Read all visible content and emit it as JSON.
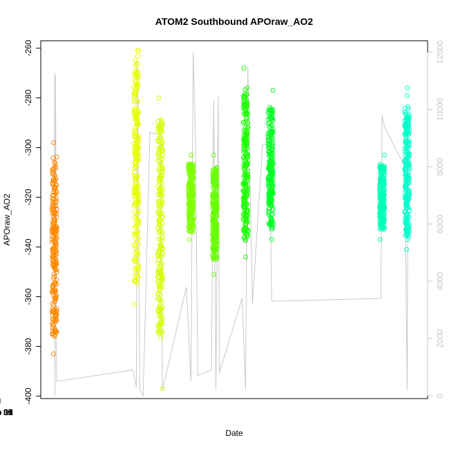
{
  "chart_data": {
    "type": "scatter",
    "title": "ATOM2 Southbound APOraw_AO2",
    "xlabel": "Date",
    "ylabel": "APOraw_AO2",
    "x_range": [
      "2022-01-28 12:00",
      "2022-02-11 16:00"
    ],
    "ylim": [
      -401,
      -257
    ],
    "y2lim": [
      -100,
      12400
    ],
    "x_ticks": [
      {
        "date": "2022-01-30",
        "label": "Jan 30"
      },
      {
        "date": "2022-02-01",
        "label": "Feb 01"
      },
      {
        "date": "2022-02-03",
        "label": "Feb 03"
      },
      {
        "date": "2022-02-05",
        "label": "Feb 05"
      },
      {
        "date": "2022-02-07",
        "label": "Feb 07"
      },
      {
        "date": "2022-02-09",
        "label": "Feb 09"
      },
      {
        "date": "2022-02-11",
        "label": "Feb 11"
      }
    ],
    "y_ticks": [
      -260,
      -280,
      -300,
      -320,
      -340,
      -360,
      -380,
      -400
    ],
    "y2_ticks": [
      0,
      2000,
      4000,
      6000,
      8000,
      10000,
      12000
    ],
    "grid": false,
    "legend": "none",
    "point_series": [
      {
        "date": "2022-01-29 00:00",
        "color": "#ff8800",
        "ymin": -383,
        "ymax": -298,
        "core_min": -376,
        "core_max": -303,
        "center": -340
      },
      {
        "date": "2022-02-01 00:00",
        "color": "#e6ff00",
        "ymin": -363,
        "ymax": -261,
        "core_min": -355,
        "core_max": -266,
        "center": -300
      },
      {
        "date": "2022-02-01 21:00",
        "color": "#d4ff00",
        "ymin": -397,
        "ymax": -280,
        "core_min": -375,
        "core_max": -288,
        "center": -330
      },
      {
        "date": "2022-02-03 00:00",
        "color": "#80ff00",
        "ymin": -337,
        "ymax": -303,
        "core_min": -334,
        "core_max": -306,
        "center": -322
      },
      {
        "date": "2022-02-03 21:00",
        "color": "#66ff00",
        "ymin": -351,
        "ymax": -303,
        "core_min": -345,
        "core_max": -308,
        "center": -325
      },
      {
        "date": "2022-02-05 00:00",
        "color": "#1aff00",
        "ymin": -344,
        "ymax": -268,
        "core_min": -338,
        "core_max": -275,
        "center": -310
      },
      {
        "date": "2022-02-05 22:00",
        "color": "#00ff22",
        "ymin": -337,
        "ymax": -277,
        "core_min": -333,
        "core_max": -283,
        "center": -312
      },
      {
        "date": "2022-02-10 00:00",
        "color": "#00ffb8",
        "ymin": -337,
        "ymax": -303,
        "core_min": -333,
        "core_max": -307,
        "center": -320
      },
      {
        "date": "2022-02-10 22:00",
        "color": "#00ffcc",
        "ymin": -341,
        "ymax": -276,
        "core_min": -337,
        "core_max": -283,
        "center": -303
      }
    ],
    "secondary_line": {
      "color": "#c8c8c8",
      "points": [
        [
          "2022-01-29 00:00",
          11300
        ],
        [
          "2022-01-29 00:30",
          0
        ],
        [
          "2022-01-29 01:00",
          11200
        ],
        [
          "2022-01-29 02:00",
          500
        ],
        [
          "2022-01-31 21:00",
          900
        ],
        [
          "2022-02-01 00:00",
          300
        ],
        [
          "2022-02-01 01:00",
          11800
        ],
        [
          "2022-02-01 03:00",
          200
        ],
        [
          "2022-02-01 06:00",
          0
        ],
        [
          "2022-02-01 12:00",
          9200
        ],
        [
          "2022-02-01 21:00",
          9100
        ],
        [
          "2022-02-01 23:00",
          200
        ],
        [
          "2022-02-02 20:00",
          3800
        ],
        [
          "2022-02-03 00:00",
          500
        ],
        [
          "2022-02-03 02:00",
          12000
        ],
        [
          "2022-02-03 04:00",
          9000
        ],
        [
          "2022-02-03 06:00",
          700
        ],
        [
          "2022-02-03 18:00",
          900
        ],
        [
          "2022-02-03 20:00",
          10300
        ],
        [
          "2022-02-03 22:00",
          200
        ],
        [
          "2022-02-04 00:00",
          10500
        ],
        [
          "2022-02-04 01:00",
          800
        ],
        [
          "2022-02-04 21:00",
          3400
        ],
        [
          "2022-02-05 00:00",
          200
        ],
        [
          "2022-02-05 02:00",
          11500
        ],
        [
          "2022-02-05 06:00",
          3200
        ],
        [
          "2022-02-05 15:00",
          8800
        ],
        [
          "2022-02-05 21:00",
          8700
        ],
        [
          "2022-02-05 23:00",
          3300
        ],
        [
          "2022-02-09 23:00",
          3400
        ],
        [
          "2022-02-10 00:00",
          9800
        ],
        [
          "2022-02-10 02:00",
          9400
        ],
        [
          "2022-02-10 20:00",
          8000
        ],
        [
          "2022-02-10 22:00",
          200
        ],
        [
          "2022-02-10 23:00",
          9600
        ]
      ]
    }
  }
}
